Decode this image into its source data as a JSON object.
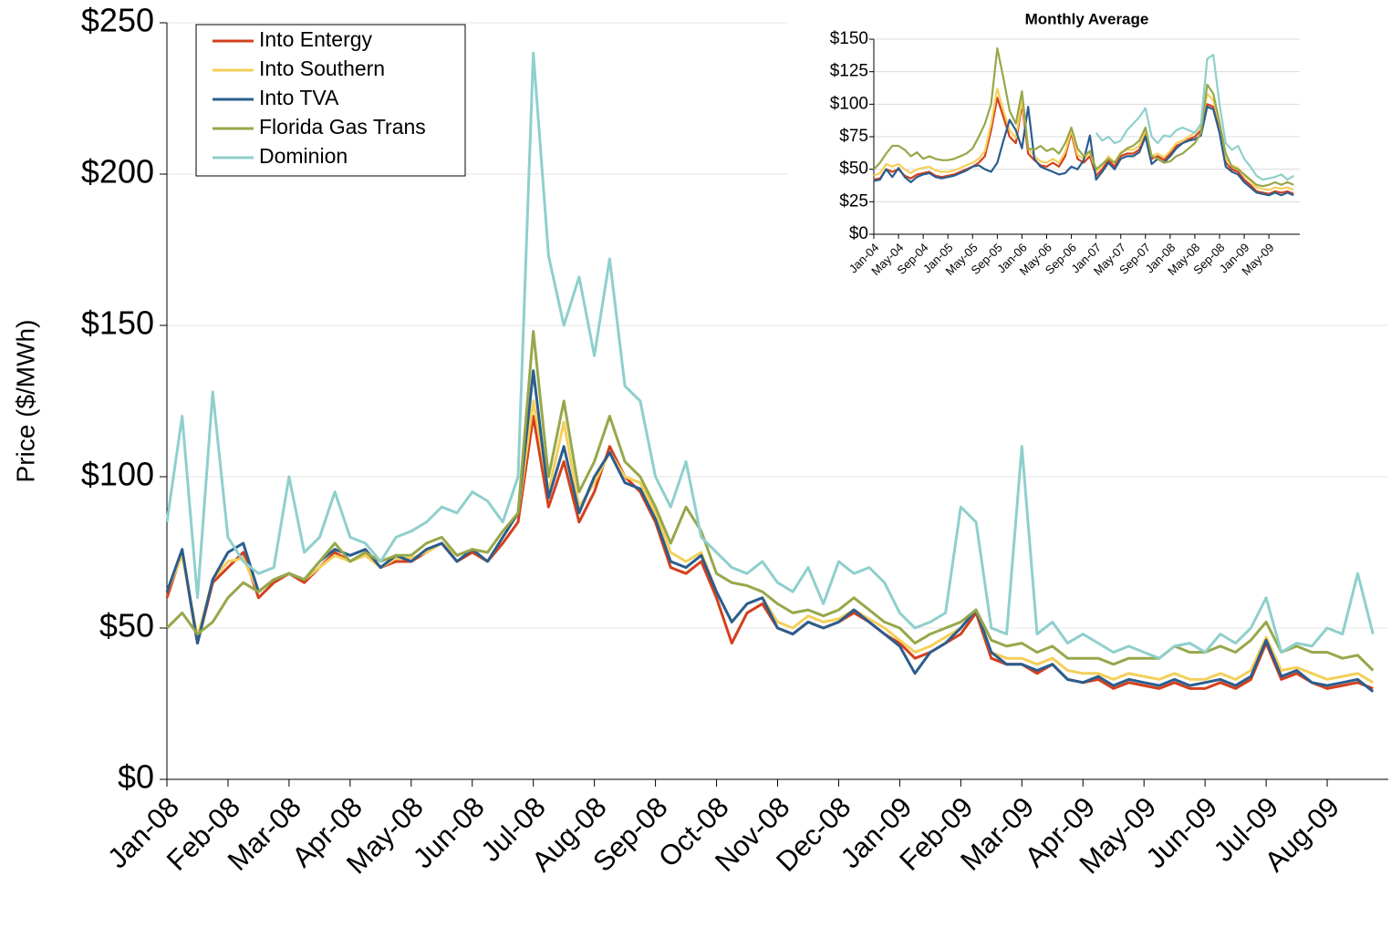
{
  "chart_data": [
    {
      "type": "line",
      "y_label": "Price ($/MWh)",
      "categories": [
        "Jan-08",
        null,
        null,
        null,
        "Feb-08",
        null,
        null,
        null,
        "Mar-08",
        null,
        null,
        null,
        "Apr-08",
        null,
        null,
        null,
        "May-08",
        null,
        null,
        null,
        "Jun-08",
        null,
        null,
        null,
        "Jul-08",
        null,
        null,
        null,
        "Aug-08",
        null,
        null,
        null,
        "Sep-08",
        null,
        null,
        null,
        "Oct-08",
        null,
        null,
        null,
        "Nov-08",
        null,
        null,
        null,
        "Dec-08",
        null,
        null,
        null,
        "Jan-09",
        null,
        null,
        null,
        "Feb-09",
        null,
        null,
        null,
        "Mar-09",
        null,
        null,
        null,
        "Apr-09",
        null,
        null,
        null,
        "May-09",
        null,
        null,
        null,
        "Jun-09",
        null,
        null,
        null,
        "Jul-09",
        null,
        null,
        null,
        "Aug-09",
        null,
        null,
        null
      ],
      "ylim": [
        0,
        250
      ],
      "yticks": [
        {
          "value": 0,
          "label": "$0"
        },
        {
          "value": 50,
          "label": "$50"
        },
        {
          "value": 100,
          "label": "$100"
        },
        {
          "value": 150,
          "label": "$150"
        },
        {
          "value": 200,
          "label": "$200"
        },
        {
          "value": 250,
          "label": "$250"
        }
      ],
      "grid": true,
      "legend": "upper left",
      "series": [
        {
          "name": "Into Entergy",
          "color": "#d4401c",
          "values": [
            60,
            75,
            45,
            65,
            70,
            75,
            60,
            65,
            68,
            65,
            70,
            75,
            72,
            75,
            70,
            72,
            72,
            75,
            78,
            72,
            75,
            72,
            78,
            85,
            120,
            90,
            105,
            85,
            95,
            110,
            100,
            95,
            85,
            70,
            68,
            72,
            60,
            45,
            55,
            58,
            50,
            48,
            52,
            50,
            52,
            55,
            52,
            48,
            45,
            40,
            42,
            45,
            48,
            55,
            40,
            38,
            38,
            35,
            38,
            33,
            32,
            33,
            30,
            32,
            31,
            30,
            32,
            30,
            30,
            32,
            30,
            33,
            45,
            33,
            35,
            32,
            30,
            31,
            32,
            30
          ]
        },
        {
          "name": "Into Southern",
          "color": "#f5cf5a",
          "values": [
            62,
            74,
            47,
            66,
            72,
            73,
            62,
            66,
            68,
            66,
            70,
            74,
            72,
            74,
            70,
            73,
            73,
            75,
            78,
            74,
            76,
            72,
            80,
            88,
            125,
            95,
            118,
            90,
            98,
            108,
            100,
            98,
            88,
            75,
            72,
            75,
            62,
            52,
            58,
            60,
            52,
            50,
            54,
            52,
            53,
            56,
            53,
            50,
            46,
            42,
            44,
            47,
            50,
            56,
            42,
            40,
            40,
            38,
            40,
            36,
            35,
            35,
            33,
            35,
            34,
            33,
            35,
            33,
            33,
            35,
            33,
            36,
            47,
            36,
            37,
            35,
            33,
            34,
            35,
            32
          ]
        },
        {
          "name": "Into TVA",
          "color": "#2b5d8f",
          "values": [
            62,
            76,
            45,
            66,
            75,
            78,
            62,
            66,
            68,
            66,
            72,
            76,
            74,
            76,
            70,
            74,
            72,
            76,
            78,
            72,
            76,
            72,
            80,
            88,
            135,
            93,
            110,
            88,
            100,
            108,
            98,
            96,
            86,
            72,
            70,
            74,
            62,
            52,
            58,
            60,
            50,
            48,
            52,
            50,
            52,
            56,
            52,
            48,
            44,
            35,
            42,
            45,
            50,
            56,
            42,
            38,
            38,
            36,
            38,
            33,
            32,
            34,
            31,
            33,
            32,
            31,
            33,
            31,
            32,
            33,
            31,
            34,
            46,
            34,
            36,
            32,
            31,
            32,
            33,
            29
          ]
        },
        {
          "name": "Florida Gas Trans",
          "color": "#96a84a",
          "values": [
            50,
            55,
            48,
            52,
            60,
            65,
            62,
            66,
            68,
            66,
            72,
            78,
            72,
            75,
            72,
            74,
            74,
            78,
            80,
            74,
            76,
            75,
            82,
            88,
            148,
            100,
            125,
            95,
            105,
            120,
            105,
            100,
            90,
            78,
            90,
            82,
            68,
            65,
            64,
            62,
            58,
            55,
            56,
            54,
            56,
            60,
            56,
            52,
            50,
            45,
            48,
            50,
            52,
            56,
            46,
            44,
            45,
            42,
            44,
            40,
            40,
            40,
            38,
            40,
            40,
            40,
            44,
            42,
            42,
            44,
            42,
            46,
            52,
            42,
            44,
            42,
            42,
            40,
            41,
            36
          ]
        },
        {
          "name": "Dominion",
          "color": "#8fcfcc",
          "values": [
            85,
            120,
            60,
            128,
            80,
            72,
            68,
            70,
            100,
            75,
            80,
            95,
            80,
            78,
            72,
            80,
            82,
            85,
            90,
            88,
            95,
            92,
            85,
            100,
            240,
            173,
            150,
            166,
            140,
            172,
            130,
            125,
            100,
            90,
            105,
            80,
            75,
            70,
            68,
            72,
            65,
            62,
            70,
            58,
            72,
            68,
            70,
            65,
            55,
            50,
            52,
            55,
            90,
            85,
            50,
            48,
            110,
            48,
            52,
            45,
            48,
            45,
            42,
            44,
            42,
            40,
            44,
            45,
            42,
            48,
            45,
            50,
            60,
            42,
            45,
            44,
            50,
            48,
            68,
            48
          ]
        }
      ]
    },
    {
      "type": "line",
      "title": "Monthly Average",
      "categories": [
        "Jan-04",
        null,
        null,
        null,
        "May-04",
        null,
        null,
        null,
        "Sep-04",
        null,
        null,
        null,
        "Jan-05",
        null,
        null,
        null,
        "May-05",
        null,
        null,
        null,
        "Sep-05",
        null,
        null,
        null,
        "Jan-06",
        null,
        null,
        null,
        "May-06",
        null,
        null,
        null,
        "Sep-06",
        null,
        null,
        null,
        "Jan-07",
        null,
        null,
        null,
        "May-07",
        null,
        null,
        null,
        "Sep-07",
        null,
        null,
        null,
        "Jan-08",
        null,
        null,
        null,
        "May-08",
        null,
        null,
        null,
        "Sep-08",
        null,
        null,
        null,
        "Jan-09",
        null,
        null,
        null,
        "May-09",
        null,
        null,
        null,
        null
      ],
      "ylim": [
        0,
        150
      ],
      "yticks": [
        {
          "value": 0,
          "label": "$0"
        },
        {
          "value": 25,
          "label": "$25"
        },
        {
          "value": 50,
          "label": "$50"
        },
        {
          "value": 75,
          "label": "$75"
        },
        {
          "value": 100,
          "label": "$100"
        },
        {
          "value": 125,
          "label": "$125"
        },
        {
          "value": 150,
          "label": "$150"
        }
      ],
      "grid": true,
      "series": [
        {
          "color": "#d4401c",
          "values": [
            42,
            43,
            50,
            48,
            50,
            45,
            43,
            46,
            47,
            48,
            45,
            44,
            45,
            46,
            48,
            50,
            52,
            55,
            60,
            80,
            105,
            90,
            75,
            70,
            100,
            62,
            57,
            53,
            52,
            55,
            52,
            60,
            78,
            58,
            55,
            60,
            45,
            50,
            57,
            52,
            60,
            62,
            62,
            65,
            78,
            58,
            60,
            57,
            62,
            68,
            70,
            73,
            75,
            80,
            100,
            98,
            80,
            55,
            50,
            48,
            42,
            38,
            33,
            32,
            31,
            33,
            32,
            33,
            31
          ]
        },
        {
          "color": "#f5cf5a",
          "values": [
            45,
            47,
            54,
            52,
            54,
            50,
            47,
            50,
            51,
            52,
            49,
            48,
            48,
            49,
            51,
            53,
            55,
            58,
            64,
            85,
            112,
            95,
            80,
            74,
            103,
            66,
            60,
            56,
            55,
            58,
            55,
            63,
            80,
            61,
            58,
            63,
            48,
            53,
            60,
            55,
            63,
            65,
            65,
            68,
            80,
            60,
            62,
            59,
            64,
            70,
            72,
            75,
            78,
            83,
            108,
            103,
            85,
            58,
            53,
            51,
            45,
            41,
            36,
            35,
            34,
            36,
            35,
            36,
            34
          ]
        },
        {
          "color": "#2b5d8f",
          "values": [
            41,
            42,
            50,
            44,
            51,
            44,
            40,
            44,
            46,
            47,
            44,
            43,
            44,
            45,
            47,
            49,
            52,
            53,
            50,
            48,
            55,
            72,
            88,
            80,
            66,
            98,
            58,
            52,
            50,
            48,
            46,
            47,
            52,
            50,
            57,
            76,
            42,
            48,
            55,
            50,
            58,
            60,
            60,
            63,
            75,
            54,
            58,
            55,
            60,
            66,
            70,
            72,
            73,
            76,
            98,
            96,
            78,
            52,
            48,
            46,
            40,
            36,
            32,
            31,
            30,
            32,
            30,
            32,
            30
          ]
        },
        {
          "color": "#96a84a",
          "values": [
            50,
            55,
            62,
            68,
            68,
            65,
            60,
            63,
            58,
            60,
            58,
            57,
            57,
            58,
            60,
            62,
            66,
            75,
            85,
            100,
            143,
            120,
            95,
            85,
            110,
            66,
            65,
            68,
            64,
            66,
            62,
            70,
            82,
            66,
            60,
            64,
            50,
            54,
            58,
            55,
            62,
            66,
            68,
            72,
            82,
            60,
            58,
            55,
            56,
            60,
            62,
            66,
            70,
            78,
            115,
            108,
            86,
            62,
            52,
            50,
            46,
            42,
            38,
            37,
            38,
            40,
            38,
            40,
            38
          ]
        },
        {
          "color": "#8fcfcc",
          "values": [
            null,
            null,
            null,
            null,
            null,
            null,
            null,
            null,
            null,
            null,
            null,
            null,
            null,
            null,
            null,
            null,
            null,
            null,
            null,
            null,
            null,
            null,
            null,
            null,
            null,
            null,
            null,
            null,
            null,
            null,
            null,
            null,
            null,
            null,
            null,
            null,
            78,
            72,
            75,
            70,
            72,
            80,
            85,
            90,
            97,
            75,
            70,
            76,
            75,
            80,
            82,
            80,
            78,
            85,
            135,
            138,
            100,
            70,
            65,
            68,
            58,
            52,
            45,
            42,
            43,
            44,
            46,
            42,
            45
          ]
        }
      ]
    }
  ]
}
